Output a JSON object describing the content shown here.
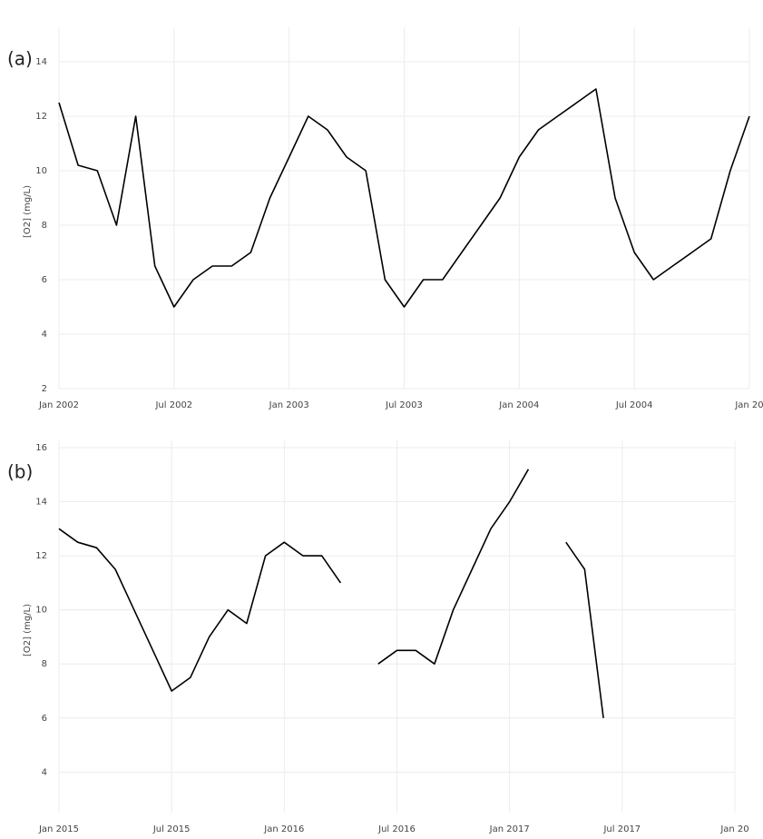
{
  "chart_data": [
    {
      "type": "line",
      "panel_label": "(a)",
      "y_label": "[O2] (mg/L)",
      "color": "#000000",
      "grid": true,
      "x": [
        "2002-01",
        "2002-02",
        "2002-03",
        "2002-04",
        "2002-05",
        "2002-06",
        "2002-07",
        "2002-08",
        "2002-09",
        "2002-10",
        "2002-11",
        "2002-12",
        "2003-01",
        "2003-02",
        "2003-03",
        "2003-04",
        "2003-05",
        "2003-06",
        "2003-07",
        "2003-08",
        "2003-09",
        "2003-10",
        "2003-11",
        "2003-12",
        "2004-01",
        "2004-02",
        "2004-03",
        "2004-04",
        "2004-05",
        "2004-06",
        "2004-07",
        "2004-08",
        "2004-09",
        "2004-10",
        "2004-11",
        "2004-12",
        "2005-01"
      ],
      "values": [
        12.5,
        10.2,
        10.0,
        8.0,
        12.0,
        6.5,
        5.0,
        6.0,
        6.5,
        6.5,
        7.0,
        9.0,
        10.5,
        12.0,
        11.5,
        10.5,
        10.0,
        6.0,
        5.0,
        6.0,
        6.0,
        7.0,
        8.0,
        9.0,
        10.5,
        11.5,
        12.0,
        12.5,
        13.0,
        9.0,
        7.0,
        6.0,
        6.5,
        7.0,
        7.5,
        10.0,
        12.0
      ],
      "xlim": [
        "2002-01",
        "2005-01"
      ],
      "xticks": [
        {
          "value": "2002-01",
          "label": "Jan 2002"
        },
        {
          "value": "2002-07",
          "label": "Jul 2002"
        },
        {
          "value": "2003-01",
          "label": "Jan 2003"
        },
        {
          "value": "2003-07",
          "label": "Jul 2003"
        },
        {
          "value": "2004-01",
          "label": "Jan 2004"
        },
        {
          "value": "2004-07",
          "label": "Jul 2004"
        },
        {
          "value": "2005-01",
          "label": "Jan 20"
        }
      ],
      "ylim": [
        2,
        15
      ],
      "yticks": [
        2,
        4,
        6,
        8,
        10,
        12,
        14
      ]
    },
    {
      "type": "line",
      "panel_label": "(b)",
      "y_label": "[O2] (mg/L)",
      "color": "#000000",
      "grid": true,
      "x": [
        "2015-01",
        "2015-02",
        "2015-03",
        "2015-04",
        "2015-05",
        "2015-06",
        "2015-07",
        "2015-08",
        "2015-09",
        "2015-10",
        "2015-11",
        "2015-12",
        "2016-01",
        "2016-02",
        "2016-03",
        "2016-04",
        "2016-05",
        "2016-06",
        "2016-07",
        "2016-08",
        "2016-09",
        "2016-10",
        "2016-11",
        "2016-12",
        "2017-01",
        "2017-02",
        "2017-03",
        "2017-04",
        "2017-05",
        "2017-06"
      ],
      "values": [
        13.0,
        12.5,
        12.3,
        11.5,
        10.0,
        8.5,
        7.0,
        7.5,
        9.0,
        10.0,
        9.5,
        12.0,
        12.5,
        12.0,
        12.0,
        11.0,
        null,
        8.0,
        8.5,
        8.5,
        8.0,
        10.0,
        11.5,
        13.0,
        14.0,
        15.2,
        null,
        12.5,
        11.5,
        6.0
      ],
      "xlim": [
        "2015-01",
        "2018-01"
      ],
      "xticks": [
        {
          "value": "2015-01",
          "label": "Jan 2015"
        },
        {
          "value": "2015-07",
          "label": "Jul 2015"
        },
        {
          "value": "2016-01",
          "label": "Jan 2016"
        },
        {
          "value": "2016-07",
          "label": "Jul 2016"
        },
        {
          "value": "2017-01",
          "label": "Jan 2017"
        },
        {
          "value": "2017-07",
          "label": "Jul 2017"
        },
        {
          "value": "2018-01",
          "label": "Jan 20"
        }
      ],
      "ylim": [
        2.5,
        16
      ],
      "yticks": [
        4,
        6,
        8,
        10,
        12,
        14,
        16
      ]
    }
  ]
}
